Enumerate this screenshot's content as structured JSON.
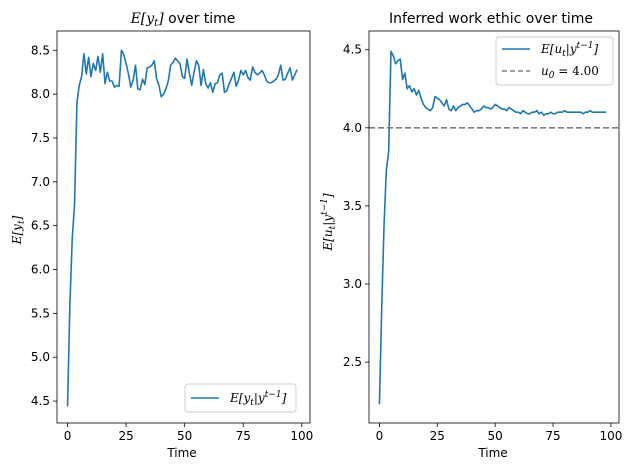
{
  "chart_data": [
    {
      "type": "line",
      "title": "E[y_t] over time",
      "title_math": "E[y",
      "title_math_sub": "t",
      "title_math_close": "]",
      "title_text": " over time",
      "xlabel": "Time",
      "ylabel": "E[y_t]",
      "ylabel_main": "E[y",
      "ylabel_sub": "t",
      "ylabel_close": "]",
      "xlim": [
        -4.5,
        103.5
      ],
      "ylim": [
        4.25,
        8.72
      ],
      "xticks": [
        0,
        25,
        50,
        75,
        100
      ],
      "xtick_labels": [
        "0",
        "25",
        "50",
        "75",
        "100"
      ],
      "yticks": [
        4.5,
        5.0,
        5.5,
        6.0,
        6.5,
        7.0,
        7.5,
        8.0,
        8.5
      ],
      "ytick_labels": [
        "4.5",
        "5.0",
        "5.5",
        "6.0",
        "6.5",
        "7.0",
        "7.5",
        "8.0",
        "8.5"
      ],
      "legend_position": "lower right",
      "series": [
        {
          "name": "E[y_t|y^{t-1}]",
          "label_main": "E[y",
          "label_sub": "t",
          "label_mid": "|y",
          "label_sup": "t−1",
          "label_close": "]",
          "color": "#1f77b4",
          "style": "solid",
          "x": [
            0,
            1,
            2,
            3,
            4,
            5,
            6,
            7,
            8,
            9,
            10,
            11,
            12,
            13,
            14,
            15,
            16,
            17,
            18,
            19,
            20,
            21,
            22,
            23,
            24,
            25,
            26,
            27,
            28,
            29,
            30,
            31,
            32,
            33,
            34,
            35,
            36,
            37,
            38,
            39,
            40,
            41,
            42,
            43,
            44,
            45,
            46,
            47,
            48,
            49,
            50,
            51,
            52,
            53,
            54,
            55,
            56,
            57,
            58,
            59,
            60,
            61,
            62,
            63,
            64,
            65,
            66,
            67,
            68,
            69,
            70,
            71,
            72,
            73,
            74,
            75,
            76,
            77,
            78,
            79,
            80,
            81,
            82,
            83,
            84,
            85,
            86,
            87,
            88,
            89,
            90,
            91,
            92,
            93,
            94,
            95,
            96,
            97,
            98
          ],
          "y": [
            4.44,
            5.6,
            6.35,
            6.75,
            7.9,
            8.1,
            8.2,
            8.46,
            8.23,
            8.42,
            8.2,
            8.35,
            8.27,
            8.43,
            8.25,
            8.46,
            8.12,
            8.25,
            8.15,
            8.15,
            8.08,
            8.1,
            8.09,
            8.5,
            8.45,
            8.35,
            8.23,
            8.08,
            8.16,
            8.33,
            8.06,
            8.05,
            8.17,
            8.11,
            8.3,
            8.31,
            8.33,
            8.38,
            8.18,
            8.1,
            7.97,
            8.0,
            8.06,
            8.15,
            8.33,
            8.36,
            8.41,
            8.38,
            8.35,
            8.2,
            8.18,
            8.4,
            8.24,
            8.1,
            8.25,
            8.38,
            8.33,
            8.1,
            8.28,
            8.12,
            8.07,
            8.13,
            8.02,
            8.12,
            8.13,
            8.22,
            8.24,
            8.02,
            8.04,
            8.12,
            8.18,
            8.25,
            8.09,
            8.16,
            8.27,
            8.22,
            8.27,
            8.19,
            8.16,
            8.31,
            8.25,
            8.22,
            8.24,
            8.27,
            8.22,
            8.15,
            8.13,
            8.13,
            8.15,
            8.17,
            8.22,
            8.33,
            8.16,
            8.17,
            8.24,
            8.3,
            8.16,
            8.22,
            8.28
          ]
        }
      ]
    },
    {
      "type": "line",
      "title": "Inferred work ethic over time",
      "xlabel": "Time",
      "ylabel": "E[u_t|y^{t-1}]",
      "ylabel_main": "E[u",
      "ylabel_sub": "t",
      "ylabel_mid": "|y",
      "ylabel_sup": "t−1",
      "ylabel_close": "]",
      "xlim": [
        -4.5,
        103.5
      ],
      "ylim": [
        2.11,
        4.62
      ],
      "xticks": [
        0,
        25,
        50,
        75,
        100
      ],
      "xtick_labels": [
        "0",
        "25",
        "50",
        "75",
        "100"
      ],
      "yticks": [
        2.5,
        3.0,
        3.5,
        4.0,
        4.5
      ],
      "ytick_labels": [
        "2.5",
        "3.0",
        "3.5",
        "4.0",
        "4.5"
      ],
      "legend_position": "upper right",
      "series": [
        {
          "name": "E[u_t|y^{t-1}]",
          "label_main": "E[u",
          "label_sub": "t",
          "label_mid": "|y",
          "label_sup": "t−1",
          "label_close": "]",
          "color": "#1f77b4",
          "style": "solid",
          "x": [
            0,
            1,
            2,
            3,
            4,
            5,
            6,
            7,
            8,
            9,
            10,
            11,
            12,
            13,
            14,
            15,
            16,
            17,
            18,
            19,
            20,
            21,
            22,
            23,
            24,
            25,
            26,
            27,
            28,
            29,
            30,
            31,
            32,
            33,
            34,
            35,
            36,
            37,
            38,
            39,
            40,
            41,
            42,
            43,
            44,
            45,
            46,
            47,
            48,
            49,
            50,
            51,
            52,
            53,
            54,
            55,
            56,
            57,
            58,
            59,
            60,
            61,
            62,
            63,
            64,
            65,
            66,
            67,
            68,
            69,
            70,
            71,
            72,
            73,
            74,
            75,
            76,
            77,
            78,
            79,
            80,
            81,
            82,
            83,
            84,
            85,
            86,
            87,
            88,
            89,
            90,
            91,
            92,
            93,
            94,
            95,
            96,
            97,
            98
          ],
          "y": [
            2.23,
            2.85,
            3.38,
            3.73,
            3.85,
            4.49,
            4.46,
            4.41,
            4.43,
            4.44,
            4.31,
            4.35,
            4.25,
            4.27,
            4.23,
            4.25,
            4.21,
            4.24,
            4.19,
            4.15,
            4.13,
            4.12,
            4.11,
            4.13,
            4.2,
            4.19,
            4.18,
            4.16,
            4.14,
            4.18,
            4.12,
            4.11,
            4.14,
            4.11,
            4.13,
            4.14,
            4.15,
            4.15,
            4.16,
            4.14,
            4.12,
            4.1,
            4.11,
            4.11,
            4.12,
            4.14,
            4.13,
            4.13,
            4.12,
            4.13,
            4.15,
            4.14,
            4.13,
            4.12,
            4.12,
            4.11,
            4.13,
            4.12,
            4.11,
            4.1,
            4.1,
            4.09,
            4.11,
            4.1,
            4.09,
            4.09,
            4.1,
            4.1,
            4.11,
            4.09,
            4.1,
            4.08,
            4.09,
            4.09,
            4.1,
            4.09,
            4.09,
            4.1,
            4.1,
            4.1,
            4.11,
            4.1,
            4.1,
            4.1,
            4.1,
            4.1,
            4.1,
            4.1,
            4.09,
            4.1,
            4.1,
            4.11,
            4.1,
            4.1,
            4.1,
            4.1,
            4.1,
            4.1,
            4.1
          ]
        },
        {
          "name": "u_0 = 4.00",
          "label_main": "u",
          "label_sub": "0",
          "label_rest": " = 4.00",
          "color": "#7f7f7f",
          "style": "dashed",
          "hline": 4.0
        }
      ]
    }
  ]
}
